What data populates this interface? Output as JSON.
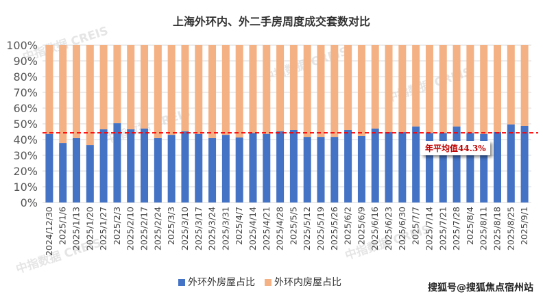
{
  "chart_data": {
    "type": "bar",
    "stacked": "100%",
    "title": "上海外环内、外二手房周度成交套数对比",
    "categories": [
      "2024/12/30",
      "2025/1/6",
      "2025/1/13",
      "2025/1/20",
      "2025/1/27",
      "2025/2/3",
      "2025/2/10",
      "2025/2/17",
      "2025/2/24",
      "2025/3/3",
      "2025/3/10",
      "2025/3/17",
      "2025/3/24",
      "2025/3/31",
      "2025/4/7",
      "2025/4/14",
      "2025/4/21",
      "2025/4/28",
      "2025/5/5",
      "2025/5/12",
      "2025/5/19",
      "2025/5/26",
      "2025/6/2",
      "2025/6/9",
      "2025/6/16",
      "2025/6/23",
      "2025/6/30",
      "2025/7/7",
      "2025/7/14",
      "2025/7/21",
      "2025/7/28",
      "2025/8/4",
      "2025/8/11",
      "2025/8/18",
      "2025/8/25",
      "2025/9/1"
    ],
    "series": [
      {
        "name": "外环外房屋占比",
        "color": "#4472c4",
        "values": [
          43.6,
          37.8,
          40.9,
          36.5,
          46.5,
          50.4,
          46.5,
          47.0,
          40.9,
          43.0,
          45.2,
          43.6,
          40.9,
          43.0,
          41.3,
          44.2,
          43.6,
          45.2,
          46.1,
          41.7,
          41.7,
          41.7,
          46.1,
          42.2,
          47.0,
          44.8,
          44.8,
          48.3,
          44.2,
          44.2,
          48.3,
          44.2,
          43.6,
          44.8,
          49.6,
          48.7
        ]
      },
      {
        "name": "外环内房屋占比",
        "color": "#f4b183",
        "values": [
          56.4,
          62.2,
          59.1,
          63.5,
          53.5,
          49.6,
          53.5,
          53.0,
          59.1,
          57.0,
          54.8,
          56.4,
          59.1,
          57.0,
          58.7,
          55.8,
          56.4,
          54.8,
          53.9,
          58.3,
          58.3,
          58.3,
          53.9,
          57.8,
          53.0,
          55.2,
          55.2,
          51.7,
          55.8,
          55.8,
          51.7,
          55.8,
          56.4,
          55.2,
          50.4,
          51.3
        ]
      }
    ],
    "ylim": [
      0,
      100
    ],
    "yticks": [
      "0%",
      "10%",
      "20%",
      "30%",
      "40%",
      "50%",
      "60%",
      "70%",
      "80%",
      "90%",
      "100%"
    ],
    "grid": true,
    "legend": "bottom",
    "reference_line": {
      "value": 44.3,
      "label": "年平均值44.3%",
      "color": "#ff0000"
    }
  },
  "watermark": "中指数据 CREIS",
  "footer": "搜狐号@搜狐焦点宿州站"
}
